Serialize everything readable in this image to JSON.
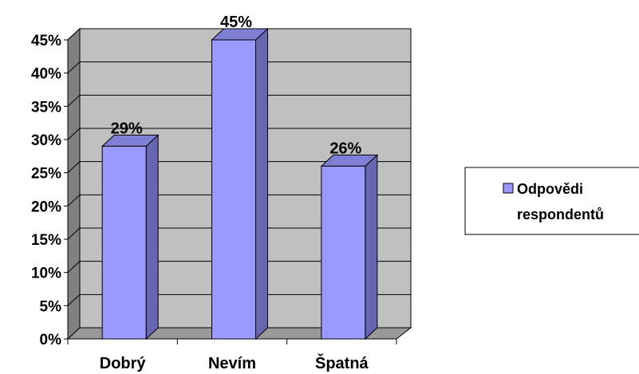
{
  "chart_data": {
    "type": "bar",
    "categories": [
      "Dobrý",
      "Nevím",
      "Špatná"
    ],
    "series": [
      {
        "name": "Odpovědi respondentů",
        "values": [
          29,
          45,
          26
        ]
      }
    ],
    "data_labels": [
      "29%",
      "45%",
      "26%"
    ],
    "y_ticks": [
      "0%",
      "5%",
      "10%",
      "15%",
      "20%",
      "25%",
      "30%",
      "35%",
      "40%",
      "45%"
    ],
    "ylim": [
      0,
      45
    ],
    "grid": true,
    "legend_position": "right",
    "legend_lines": [
      "Odpovědi",
      "respondentů"
    ],
    "colors": {
      "bar_front": "#9999ff",
      "bar_side": "#6666b3",
      "bar_top": "#7f7fd6",
      "wall": "#c0c0c0",
      "side_wall": "#808080",
      "floor": "#999999"
    }
  }
}
